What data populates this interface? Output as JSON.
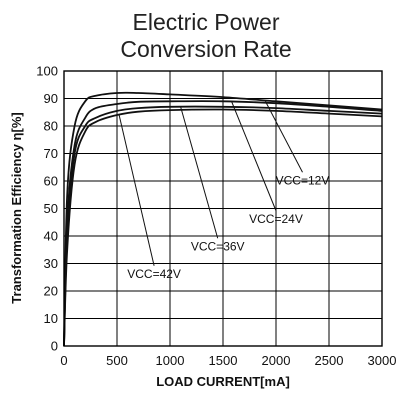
{
  "chart_data": {
    "type": "line",
    "title": [
      "Electric Power",
      "Conversion Rate"
    ],
    "xlabel": "LOAD CURRENT[mA]",
    "ylabel": "Transformation Efficiency  η[%]",
    "xlim": [
      0,
      3000
    ],
    "ylim": [
      0,
      100
    ],
    "x_ticks": [
      0,
      500,
      1000,
      1500,
      2000,
      2500,
      3000
    ],
    "y_ticks": [
      0,
      10,
      20,
      30,
      40,
      50,
      60,
      70,
      80,
      90,
      100
    ],
    "grid": true,
    "series": [
      {
        "name": "VCC=12V",
        "x": [
          0,
          30,
          100,
          200,
          300,
          500,
          700,
          1000,
          1500,
          2000,
          2500,
          3000
        ],
        "y": [
          0,
          55,
          80,
          89,
          91,
          92,
          92,
          91.5,
          90.5,
          89,
          87.5,
          86
        ]
      },
      {
        "name": "VCC=24V",
        "x": [
          0,
          30,
          100,
          200,
          300,
          500,
          700,
          1000,
          1500,
          2000,
          2500,
          3000
        ],
        "y": [
          0,
          45,
          73,
          83,
          86.5,
          88,
          88.8,
          89,
          89,
          88.3,
          87,
          85.5
        ]
      },
      {
        "name": "VCC=36V",
        "x": [
          0,
          30,
          100,
          200,
          300,
          500,
          700,
          1000,
          1500,
          2000,
          2500,
          3000
        ],
        "y": [
          0,
          40,
          70,
          80,
          83,
          85.5,
          86.5,
          87,
          87,
          86.5,
          85.5,
          84.5
        ]
      },
      {
        "name": "VCC=42V",
        "x": [
          0,
          30,
          100,
          200,
          300,
          500,
          700,
          1000,
          1500,
          2000,
          2500,
          3000
        ],
        "y": [
          0,
          35,
          66,
          78,
          81.5,
          84,
          85.2,
          85.8,
          86,
          85.5,
          84.5,
          83.5
        ]
      }
    ],
    "annotations": [
      {
        "text": "VCC=12V",
        "series": "VCC=12V",
        "point": [
          1900,
          89
        ],
        "label_at": [
          2250,
          61
        ]
      },
      {
        "text": "VCC=24V",
        "series": "VCC=24V",
        "point": [
          1580,
          89
        ],
        "label_at": [
          2000,
          47
        ]
      },
      {
        "text": "VCC=36V",
        "series": "VCC=36V",
        "point": [
          1100,
          87
        ],
        "label_at": [
          1450,
          37
        ]
      },
      {
        "text": "VCC=42V",
        "series": "VCC=42V",
        "point": [
          520,
          84
        ],
        "label_at": [
          850,
          27
        ]
      }
    ]
  }
}
